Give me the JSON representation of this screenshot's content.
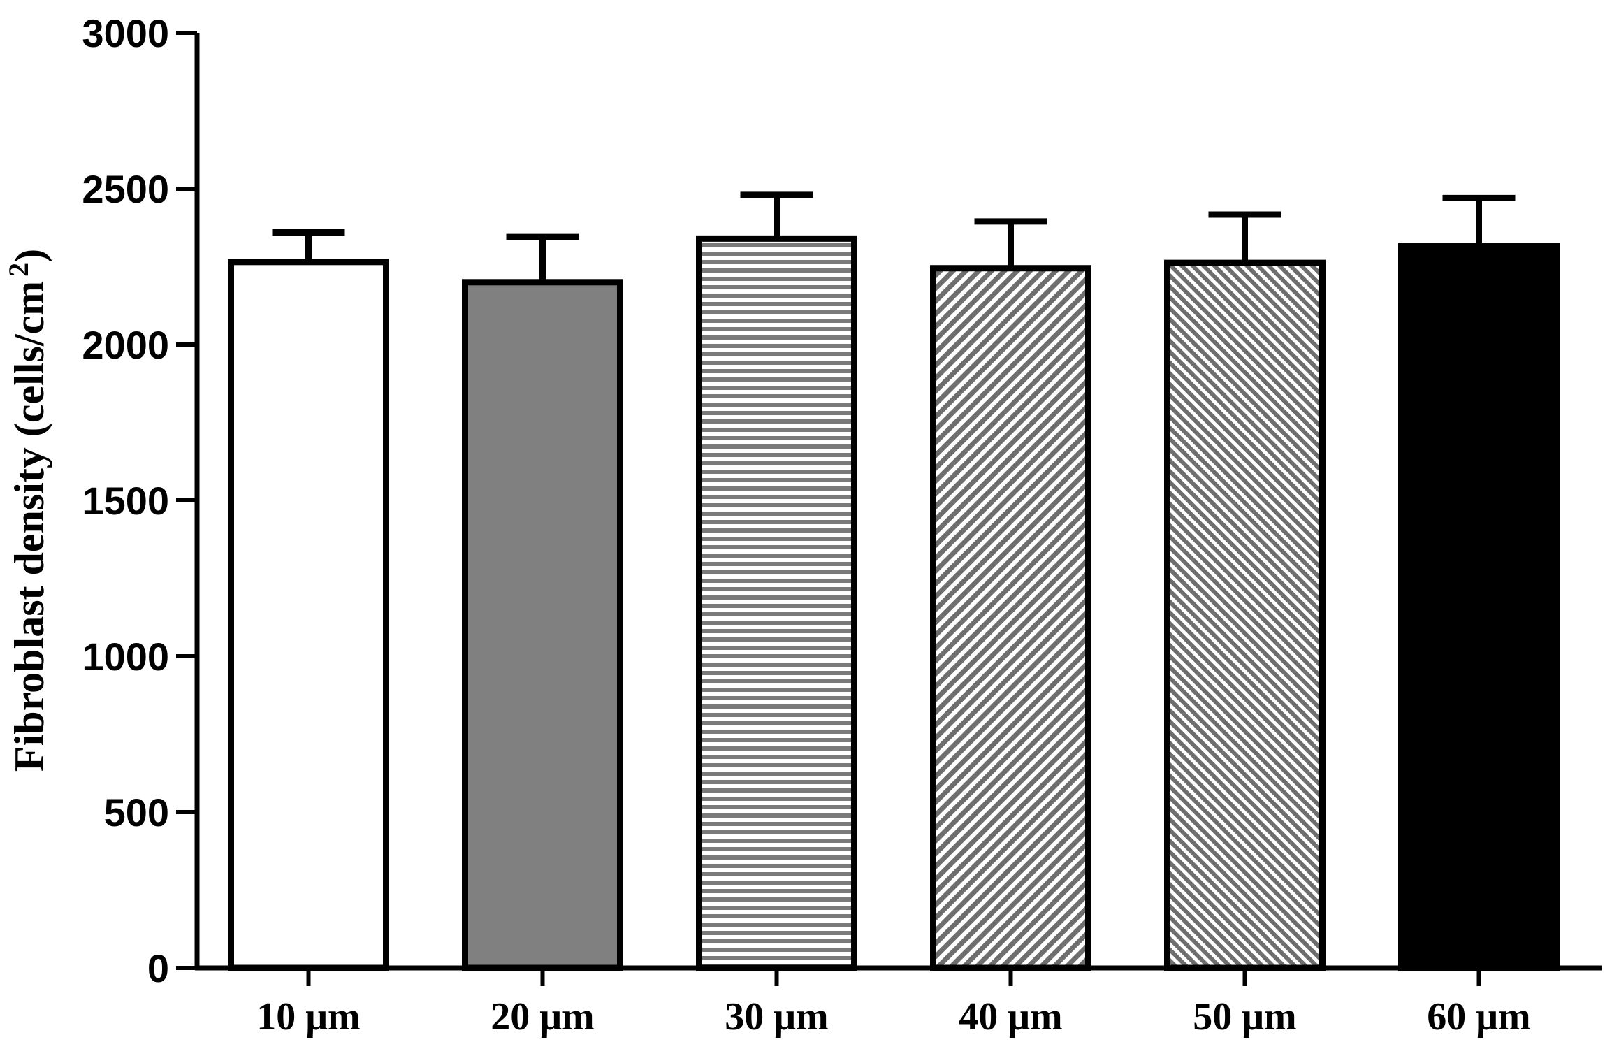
{
  "chart_data": {
    "type": "bar",
    "title": "",
    "xlabel": "",
    "ylabel": "Fibroblast density (cells/cm",
    "ylabel_superscript": "2",
    "ylabel_close": ")",
    "categories": [
      "10 μm",
      "20 μm",
      "30 μm",
      "40 μm",
      "50 μm",
      "60 μm"
    ],
    "values": [
      2265,
      2200,
      2340,
      2245,
      2262,
      2315
    ],
    "error_upper": [
      95,
      145,
      140,
      150,
      155,
      155
    ],
    "ylim": [
      0,
      3000
    ],
    "yticks": [
      0,
      500,
      1000,
      1500,
      2000,
      2500,
      3000
    ],
    "ytick_labels": [
      "0",
      "500",
      "1000",
      "1500",
      "2000",
      "2500",
      "3000"
    ],
    "bar_fills": [
      "white",
      "gray",
      "horizontal-lines",
      "diagonal-hatch",
      "diagonal-hatch-reverse",
      "black"
    ],
    "grid": false,
    "legend": "none",
    "colors": {
      "axis": "#000000",
      "gray": "#808080",
      "black": "#000000",
      "white": "#ffffff"
    }
  }
}
